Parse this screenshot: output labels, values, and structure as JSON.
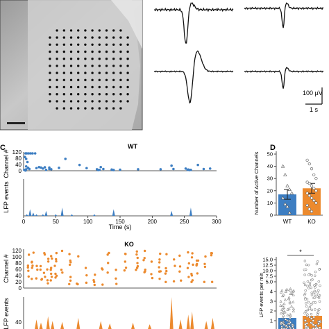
{
  "colors": {
    "wt": "#3d7ec2",
    "ko": "#ec8a2e",
    "axis": "#222222"
  },
  "panel_a": {
    "scale_bar_desc": "electrode array photograph"
  },
  "panel_b": {
    "scale_voltage": "100 µV",
    "scale_time": "1 s"
  },
  "panel_c": {
    "letter": "C",
    "wt_title": "WT",
    "ko_title": "KO",
    "ylabel_channel": "Channel #",
    "ylabel_lfp": "LFP events",
    "xlabel": "Time (s)",
    "channel_ticks": [
      "120",
      "80",
      "40",
      "0"
    ],
    "ko_channel_ticks": [
      "120",
      "100",
      "80",
      "60",
      "40",
      "20",
      "0"
    ],
    "time_ticks": [
      "0",
      "50",
      "100",
      "150",
      "200",
      "250",
      "300"
    ],
    "ko_lfp_tick": "40"
  },
  "chart_data": [
    {
      "type": "scatter",
      "title": "WT",
      "xlabel": "Time (s)",
      "ylabel": "Channel #",
      "xlim": [
        0,
        300
      ],
      "ylim": [
        0,
        120
      ],
      "x": [
        3,
        5,
        8,
        11,
        14,
        18,
        2,
        4,
        6,
        4,
        7,
        24,
        27,
        33,
        40,
        43,
        65,
        87,
        4,
        9,
        20,
        30,
        40,
        55,
        98,
        120,
        35,
        114,
        124,
        137,
        140,
        150,
        178,
        213,
        233,
        252,
        230,
        271,
        280,
        290,
        256,
        260,
        116,
        118,
        255,
        258,
        1,
        2,
        3
      ],
      "y": [
        120,
        120,
        120,
        120,
        120,
        120,
        95,
        82,
        60,
        30,
        20,
        25,
        22,
        24,
        22,
        10,
        82,
        40,
        10,
        12,
        18,
        15,
        12,
        20,
        18,
        25,
        6,
        10,
        12,
        8,
        5,
        7,
        10,
        10,
        12,
        15,
        35,
        40,
        12,
        15,
        8,
        6,
        5,
        6,
        6,
        5,
        6,
        5,
        2
      ]
    },
    {
      "type": "bar",
      "title": "",
      "xlabel": "Time (s)",
      "ylabel": "LFP events",
      "xlim": [
        0,
        300
      ],
      "x": [
        1,
        2,
        3,
        4,
        5,
        6,
        7,
        8,
        9,
        10,
        11,
        12,
        13,
        14,
        15,
        16,
        17,
        18,
        19,
        20,
        21,
        22,
        23,
        24,
        25,
        26,
        27,
        28,
        29,
        30,
        31,
        32,
        33,
        34,
        35,
        36,
        37,
        38,
        39,
        40,
        41,
        42,
        43,
        44,
        45,
        46,
        47,
        48,
        49,
        50,
        51,
        52,
        53,
        54,
        55,
        56,
        57,
        58,
        59,
        60
      ],
      "values": [
        1,
        4,
        2,
        1,
        0,
        1,
        3,
        0,
        0,
        1,
        0,
        5,
        0,
        0,
        1,
        0,
        0,
        0,
        0,
        0,
        0,
        1,
        0,
        0,
        0,
        0,
        0,
        4,
        0,
        0,
        0,
        0,
        0,
        0,
        0,
        0,
        0,
        0,
        0,
        0,
        0,
        0,
        0,
        0,
        0,
        3,
        0,
        0,
        0,
        0,
        0,
        5,
        0,
        0,
        0,
        0,
        0,
        0,
        0,
        0
      ]
    },
    {
      "type": "bar",
      "title": "",
      "xlabel": "",
      "ylabel": "Number of Active Channels",
      "ylim": [
        0,
        50
      ],
      "categories": [
        "WT",
        "KO"
      ],
      "values": [
        17,
        22
      ],
      "error": [
        4,
        4
      ],
      "points": {
        "WT": [
          40,
          33,
          24,
          21,
          18,
          14,
          9,
          7,
          2
        ],
        "KO": [
          45,
          42,
          38,
          33,
          30,
          27,
          26,
          24,
          22,
          20,
          18,
          16,
          14,
          12,
          10,
          8,
          5,
          3
        ]
      }
    },
    {
      "type": "bar",
      "title": "",
      "xlabel": "",
      "ylabel": "LFP events per min",
      "ylim": [
        0,
        15
      ],
      "categories": [
        "WT",
        "KO"
      ],
      "values": [
        1.2,
        1.6
      ],
      "annotation": "*"
    }
  ],
  "panel_d": {
    "letter": "D",
    "ylabel": "Number of Active Channels",
    "yticks": [
      "0",
      "10",
      "20",
      "30",
      "40",
      "50"
    ],
    "xcats": [
      "WT",
      "KO"
    ]
  },
  "panel_e": {
    "ylabel": "LFP events per min",
    "yticks": [
      "15.0",
      "12.5",
      "10.0",
      "7.5",
      "5.0",
      "4",
      "3",
      "2",
      "1"
    ],
    "significance": "*"
  }
}
